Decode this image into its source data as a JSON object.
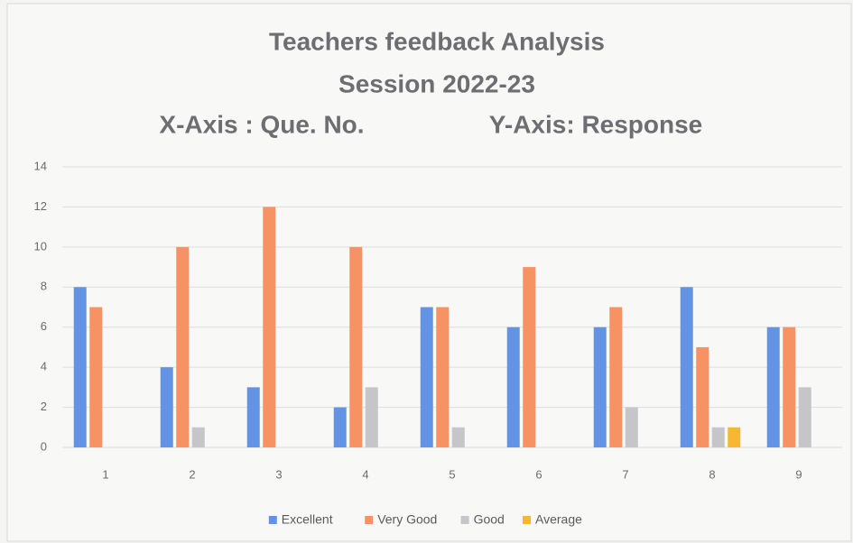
{
  "chart_data": {
    "type": "bar",
    "title": "Teachers feedback Analysis",
    "subtitle": "Session 2022-23",
    "x_label": "X-Axis : Que. No.",
    "y_label": "Y-Axis: Response",
    "categories": [
      "1",
      "2",
      "3",
      "4",
      "5",
      "6",
      "7",
      "8",
      "9"
    ],
    "series": [
      {
        "name": "Excellent",
        "color": "#6394e4",
        "values": [
          8,
          4,
          3,
          2,
          7,
          6,
          6,
          8,
          6
        ]
      },
      {
        "name": "Very Good",
        "color": "#f59462",
        "values": [
          7,
          10,
          12,
          10,
          7,
          9,
          7,
          5,
          6
        ]
      },
      {
        "name": "Good",
        "color": "#c6c6ca",
        "values": [
          0,
          1,
          0,
          3,
          1,
          0,
          2,
          1,
          3
        ]
      },
      {
        "name": "Average",
        "color": "#f7b733",
        "values": [
          0,
          0,
          0,
          0,
          0,
          0,
          0,
          1,
          0
        ]
      }
    ],
    "ylim": [
      0,
      14
    ],
    "yticks": [
      0,
      2,
      4,
      6,
      8,
      10,
      12,
      14
    ],
    "grid": true,
    "legend": "bottom"
  }
}
